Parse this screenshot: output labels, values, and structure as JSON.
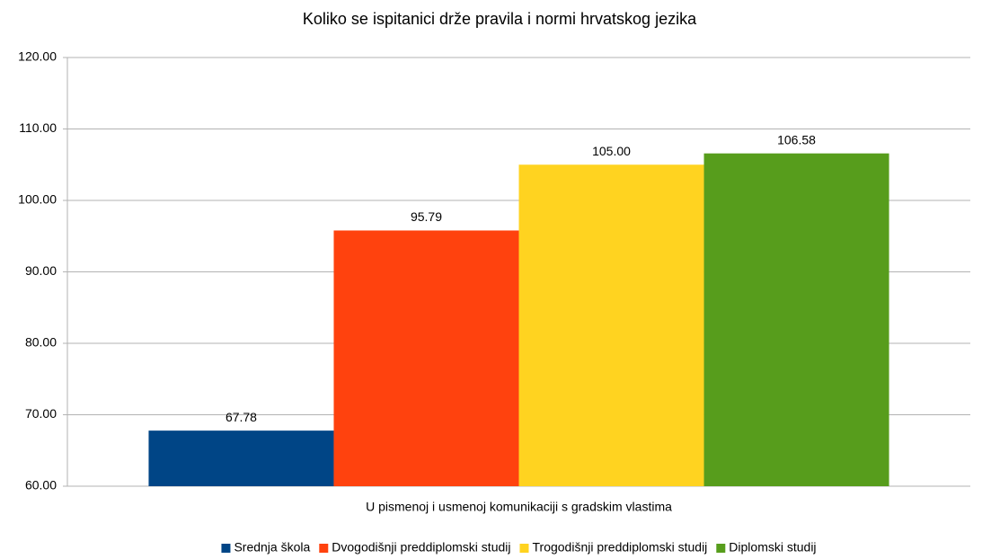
{
  "chart_data": {
    "type": "bar",
    "title": "Koliko se ispitanici drže pravila i normi hrvatskog jezika",
    "categories": [
      "U pismenoj i usmenoj komunikaciji s gradskim vlastima"
    ],
    "series": [
      {
        "name": "Srednja škola",
        "color": "#004586",
        "values": [
          67.78
        ],
        "value_labels": [
          "67.78"
        ]
      },
      {
        "name": "Dvogodišnji preddiplomski studij",
        "color": "#ff420e",
        "values": [
          95.79
        ],
        "value_labels": [
          "95.79"
        ]
      },
      {
        "name": "Trogodišnji preddiplomski studij",
        "color": "#ffd320",
        "values": [
          105
        ],
        "value_labels": [
          "105.00"
        ]
      },
      {
        "name": "Diplomski studij",
        "color": "#579d1c",
        "values": [
          106.58
        ],
        "value_labels": [
          "106.58"
        ]
      }
    ],
    "ylim": [
      60,
      120
    ],
    "yticks": [
      {
        "value": 60,
        "label": "60.00"
      },
      {
        "value": 70,
        "label": "70.00"
      },
      {
        "value": 80,
        "label": "80.00"
      },
      {
        "value": 90,
        "label": "90.00"
      },
      {
        "value": 100,
        "label": "100.00"
      },
      {
        "value": 110,
        "label": "110.00"
      },
      {
        "value": 120,
        "label": "120.00"
      }
    ],
    "grid": true,
    "legend": "bottom"
  }
}
